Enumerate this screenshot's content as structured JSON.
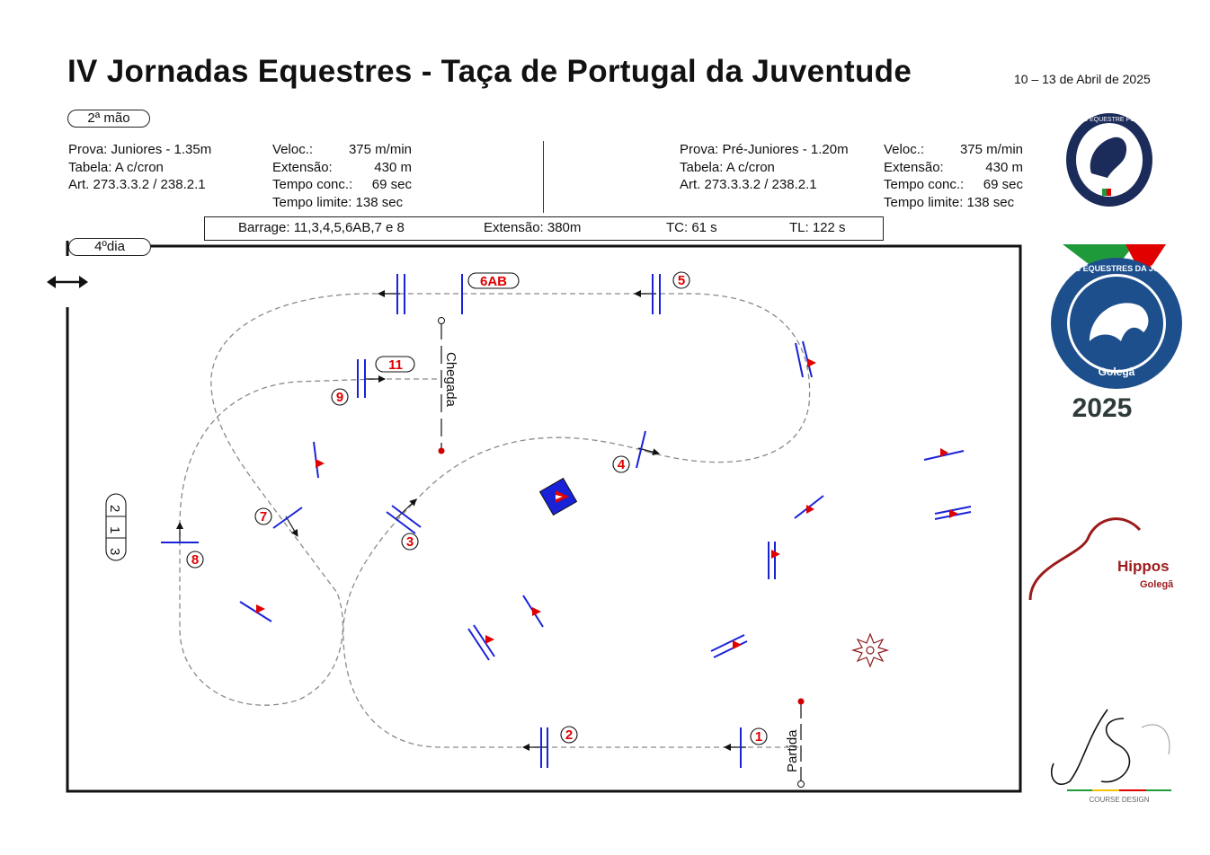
{
  "header": {
    "title": "IV Jornadas Equestres - Taça de Portugal da Juventude",
    "dates": "10 – 13 de Abril de 2025",
    "round": "2ª mão",
    "day": "4ºdia"
  },
  "left_class": {
    "prova": "Prova: Juniores - 1.35m",
    "tabela": "Tabela: A c/cron",
    "art": "Art.  273.3.3.2 / 238.2.1",
    "veloc_label": "Veloc.:",
    "veloc_value": "375 m/min",
    "ext_label": "Extensão:",
    "ext_value": "430 m",
    "tc_label": "Tempo conc.:",
    "tc_value": "69 sec",
    "tl_text": "Tempo limite: 138 sec"
  },
  "right_class": {
    "prova": "Prova: Pré-Juniores - 1.20m",
    "tabela": "Tabela: A c/cron",
    "art": "Art.  273.3.3.2 / 238.2.1",
    "veloc_label": "Veloc.:",
    "veloc_value": "375 m/min",
    "ext_label": "Extensão:",
    "ext_value": "430 m",
    "tc_label": "Tempo conc.:",
    "tc_value": "69 sec",
    "tl_text": "Tempo limite: 138 sec"
  },
  "barrage": {
    "route": "Barrage: 11,3,4,5,6AB,7 e 8",
    "extension": "Extensão: 380m",
    "tc": "TC: 61 s",
    "tl": "TL: 122 s"
  },
  "arena": {
    "obstacles": [
      "1",
      "2",
      "3",
      "4",
      "5",
      "6AB",
      "7",
      "8",
      "9",
      "11"
    ],
    "combo_213": [
      "2",
      "1",
      "3"
    ],
    "start_label": "Partida",
    "finish_label": "Chegada"
  },
  "logos": {
    "fep_ring": "FEDERAÇÃO EQUESTRE PORTUGUESA",
    "jornadas_ring": "JORNADAS EQUESTRES DA JUVENTUDE",
    "jornadas_place": "Golegã",
    "jornadas_year": "2025",
    "hippos_name": "Hippos",
    "hippos_place": "Golegã",
    "designer_caption": "COURSE DESIGN"
  },
  "colors": {
    "fence_blue": "#1a22d8",
    "number_red": "#e00000",
    "path_gray": "#8a8a8a",
    "jornadas_blue": "#1d4f8c",
    "hippos_red": "#9c1c1c",
    "flag_green": "#1f9a3a"
  }
}
